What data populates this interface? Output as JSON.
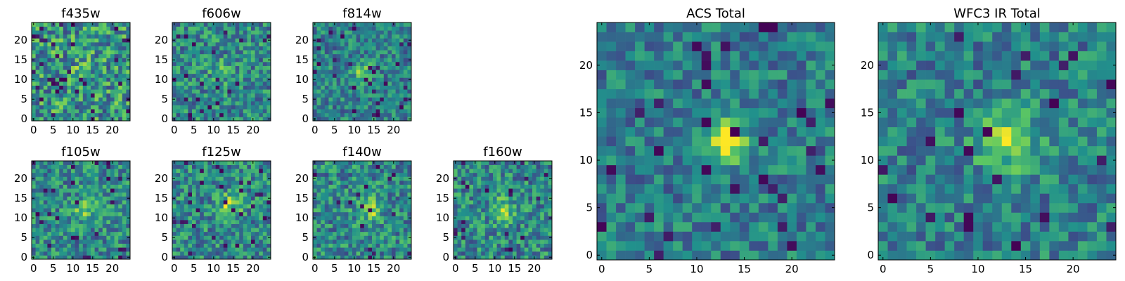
{
  "colormap": "viridis",
  "colormap_stops": [
    "#440154",
    "#3b528b",
    "#21918c",
    "#5ec962",
    "#fde725"
  ],
  "chart_data": [
    {
      "type": "heatmap",
      "title": "f435w",
      "grid_size": 25,
      "xticks": [
        0,
        5,
        10,
        15,
        20
      ],
      "yticks": [
        0,
        5,
        10,
        15,
        20
      ],
      "xlim": [
        -0.5,
        24.5
      ],
      "ylim": [
        -0.5,
        24.5
      ],
      "grid": false,
      "seed": 11,
      "noise_level": 0.62,
      "source_peak": 0.1,
      "source_center": [
        12,
        12
      ],
      "source_radius": 1.5,
      "dark_pixels": 0.06,
      "description": "mostly noise, green-yellow"
    },
    {
      "type": "heatmap",
      "title": "f606w",
      "grid_size": 25,
      "xticks": [
        0,
        5,
        10,
        15,
        20
      ],
      "yticks": [
        0,
        5,
        10,
        15,
        20
      ],
      "xlim": [
        -0.5,
        24.5
      ],
      "ylim": [
        -0.5,
        24.5
      ],
      "grid": false,
      "seed": 23,
      "noise_level": 0.5,
      "source_peak": 0.2,
      "source_center": [
        12,
        12
      ],
      "source_radius": 2,
      "dark_pixels": 0.03,
      "description": "noise with faint source"
    },
    {
      "type": "heatmap",
      "title": "f814w",
      "grid_size": 25,
      "xticks": [
        0,
        5,
        10,
        15,
        20
      ],
      "yticks": [
        0,
        5,
        10,
        15,
        20
      ],
      "xlim": [
        -0.5,
        24.5
      ],
      "ylim": [
        -0.5,
        24.5
      ],
      "grid": false,
      "seed": 37,
      "noise_level": 0.44,
      "source_peak": 0.38,
      "source_center": [
        12,
        12
      ],
      "source_radius": 1.6,
      "dark_pixels": 0.04,
      "description": "noise with bright central source"
    },
    {
      "type": "heatmap",
      "title": "f105w",
      "grid_size": 25,
      "xticks": [
        0,
        5,
        10,
        15,
        20
      ],
      "yticks": [
        0,
        5,
        10,
        15,
        20
      ],
      "xlim": [
        -0.5,
        24.5
      ],
      "ylim": [
        -0.5,
        24.5
      ],
      "grid": false,
      "seed": 41,
      "noise_level": 0.5,
      "source_peak": 0.3,
      "source_center": [
        13,
        12
      ],
      "source_radius": 2.2,
      "dark_pixels": 0.04,
      "description": "smoother, central source"
    },
    {
      "type": "heatmap",
      "title": "f125w",
      "grid_size": 25,
      "xticks": [
        0,
        5,
        10,
        15,
        20
      ],
      "yticks": [
        0,
        5,
        10,
        15,
        20
      ],
      "xlim": [
        -0.5,
        24.5
      ],
      "ylim": [
        -0.5,
        24.5
      ],
      "grid": false,
      "seed": 53,
      "noise_level": 0.5,
      "source_peak": 0.32,
      "source_center": [
        14,
        13
      ],
      "source_radius": 2.2,
      "dark_pixels": 0.04,
      "description": "smoother, central source"
    },
    {
      "type": "heatmap",
      "title": "f140w",
      "grid_size": 25,
      "xticks": [
        0,
        5,
        10,
        15,
        20
      ],
      "yticks": [
        0,
        5,
        10,
        15,
        20
      ],
      "xlim": [
        -0.5,
        24.5
      ],
      "ylim": [
        -0.5,
        24.5
      ],
      "grid": false,
      "seed": 67,
      "noise_level": 0.5,
      "source_peak": 0.3,
      "source_center": [
        14,
        12
      ],
      "source_radius": 2.3,
      "dark_pixels": 0.03,
      "description": "smoother, central source"
    },
    {
      "type": "heatmap",
      "title": "f160w",
      "grid_size": 25,
      "xticks": [
        0,
        5,
        10,
        15,
        20
      ],
      "yticks": [
        0,
        5,
        10,
        15,
        20
      ],
      "xlim": [
        -0.5,
        24.5
      ],
      "ylim": [
        -0.5,
        24.5
      ],
      "grid": false,
      "seed": 79,
      "noise_level": 0.5,
      "source_peak": 0.3,
      "source_center": [
        12,
        12
      ],
      "source_radius": 2.2,
      "dark_pixels": 0.04,
      "description": "smoother, central source"
    },
    {
      "type": "heatmap",
      "title": "ACS Total",
      "grid_size": 25,
      "xticks": [
        0,
        5,
        10,
        15,
        20
      ],
      "yticks": [
        0,
        5,
        10,
        15,
        20
      ],
      "xlim": [
        -0.5,
        24.5
      ],
      "ylim": [
        -0.5,
        24.5
      ],
      "grid": false,
      "seed": 97,
      "noise_level": 0.4,
      "source_peak": 0.55,
      "source_center": [
        13,
        12
      ],
      "source_radius": 1.7,
      "dark_pixels": 0.05,
      "description": "stacked ACS bands, bright central source"
    },
    {
      "type": "heatmap",
      "title": "WFC3 IR Total",
      "grid_size": 25,
      "xticks": [
        0,
        5,
        10,
        15,
        20
      ],
      "yticks": [
        0,
        5,
        10,
        15,
        20
      ],
      "xlim": [
        -0.5,
        24.5
      ],
      "ylim": [
        -0.5,
        24.5
      ],
      "grid": false,
      "seed": 113,
      "noise_level": 0.42,
      "source_peak": 0.42,
      "source_center": [
        13,
        12
      ],
      "source_radius": 2.2,
      "dark_pixels": 0.04,
      "description": "stacked IR bands, bright central source"
    }
  ]
}
